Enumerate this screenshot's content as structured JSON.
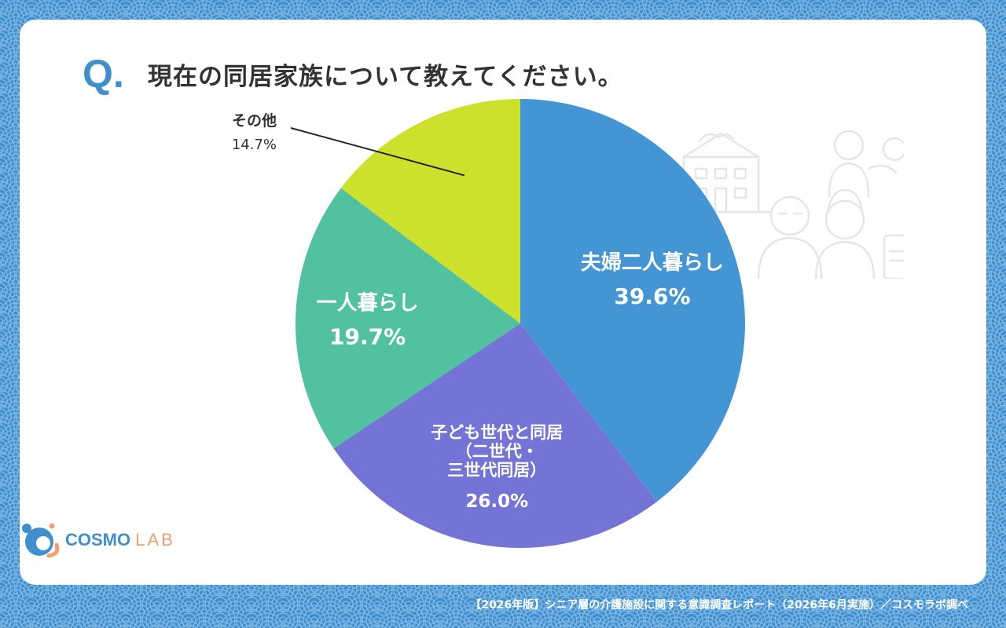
{
  "question": {
    "mark": "Q.",
    "text": "現在の同居家族について教えてください。"
  },
  "chart_data": {
    "type": "pie",
    "title": "現在の同居家族について教えてください。",
    "unit": "%",
    "start": "12 o'clock, clockwise",
    "slices": [
      {
        "label": "夫婦二人暮らし",
        "value": 39.6,
        "value_text": "39.6%",
        "color": "#4396d3",
        "label_position": "inside"
      },
      {
        "label": "子ども世代と同居\n（二世代・\n三世代同居）",
        "value": 26.0,
        "value_text": "26.0%",
        "color": "#7474d7",
        "label_position": "inside"
      },
      {
        "label": "一人暮らし",
        "value": 19.7,
        "value_text": "19.7%",
        "color": "#52c1a0",
        "label_position": "inside"
      },
      {
        "label": "その他",
        "value": 14.7,
        "value_text": "14.7%",
        "color": "#cde02c",
        "label_position": "outside-with-leader"
      }
    ]
  },
  "logo": {
    "part1": "COSMO",
    "part2": "LAB",
    "icon_name": "cosmo-lab-logo-icon"
  },
  "footer": {
    "source": "【2026年版】シニア層の介護施設に関する意識調査レポート（2026年6月実施）／コスモラボ調べ"
  },
  "decor": {
    "background_pattern": "seigaiha-wave-icon",
    "illustration": "seniors-care-facility-illustration-icon",
    "bg_color": "#3f8fcf",
    "card_color": "#ffffff"
  }
}
